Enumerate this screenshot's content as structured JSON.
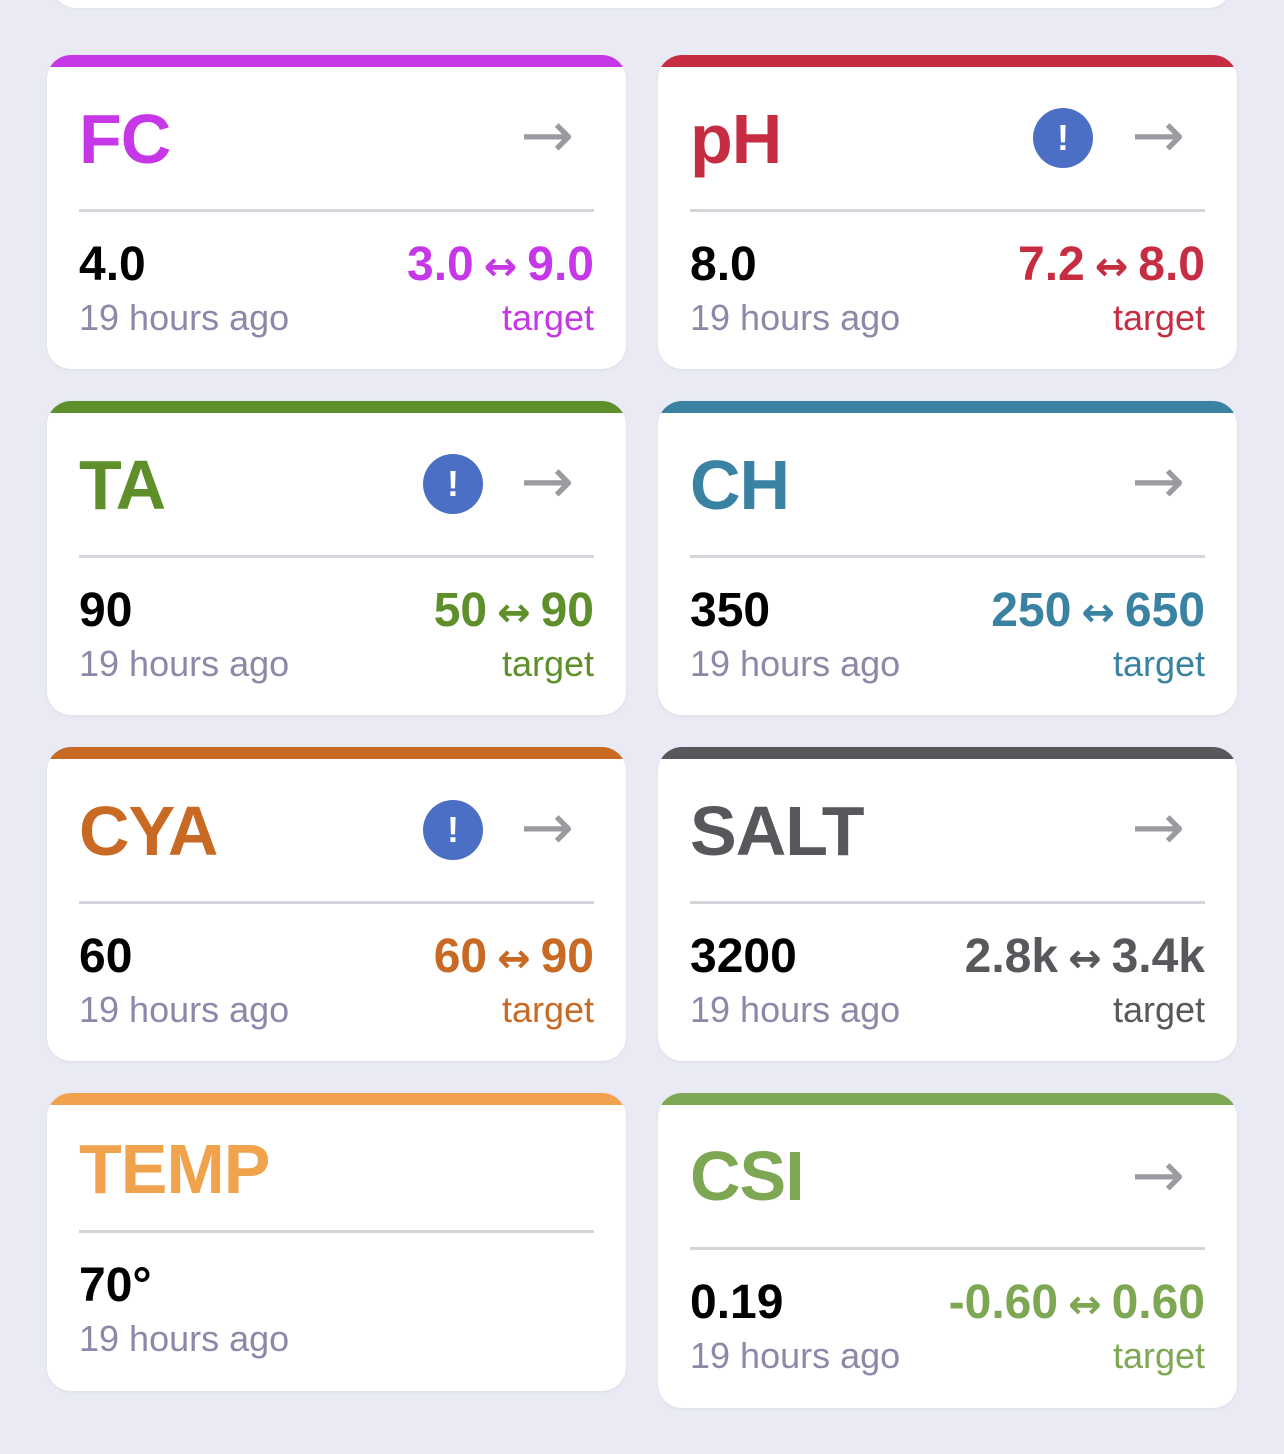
{
  "colors": {
    "background": "#e9eaf4",
    "alert": "#4a6fc4",
    "arrow": "#9a9aa0",
    "time_text": "#8a8aa8"
  },
  "icons": {
    "arrow": "→",
    "alert": "!",
    "range_separator": "↔"
  },
  "cards": [
    {
      "name": "FC",
      "color": "#c637e8",
      "value": "4.0",
      "time": "19 hours ago",
      "range_low": "3.0",
      "range_high": "9.0",
      "target_label": "target",
      "alert": false
    },
    {
      "name": "pH",
      "color": "#c62d42",
      "value": "8.0",
      "time": "19 hours ago",
      "range_low": "7.2",
      "range_high": "8.0",
      "target_label": "target",
      "alert": true
    },
    {
      "name": "TA",
      "color": "#5e8f2a",
      "value": "90",
      "time": "19 hours ago",
      "range_low": "50",
      "range_high": "90",
      "target_label": "target",
      "alert": true
    },
    {
      "name": "CH",
      "color": "#3a82a2",
      "value": "350",
      "time": "19 hours ago",
      "range_low": "250",
      "range_high": "650",
      "target_label": "target",
      "alert": false
    },
    {
      "name": "CYA",
      "color": "#c86a24",
      "value": "60",
      "time": "19 hours ago",
      "range_low": "60",
      "range_high": "90",
      "target_label": "target",
      "alert": true
    },
    {
      "name": "SALT",
      "color": "#58585c",
      "value": "3200",
      "time": "19 hours ago",
      "range_low": "2.8k",
      "range_high": "3.4k",
      "target_label": "target",
      "alert": false
    },
    {
      "name": "TEMP",
      "color": "#f0a34c",
      "value": "70°",
      "time": "19 hours ago"
    },
    {
      "name": "CSI",
      "color": "#7da752",
      "value": "0.19",
      "time": "19 hours ago",
      "range_low": "-0.60",
      "range_high": "0.60",
      "target_label": "target",
      "alert": false
    }
  ]
}
